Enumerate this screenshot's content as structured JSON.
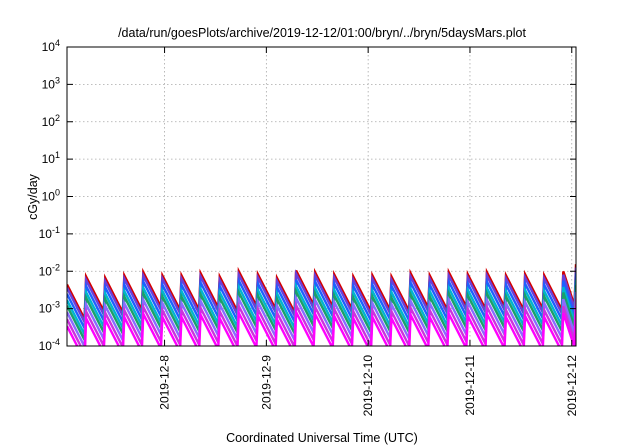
{
  "chart_data": {
    "type": "line",
    "title": "/data/run/goesPlots/archive/2019-12-12/01:00/bryn/../bryn/5daysMars.plot",
    "xlabel": "Coordinated Universal Time (UTC)",
    "ylabel": "cGy/day",
    "x_scale": "time",
    "y_scale": "log",
    "xlim": [
      "2019-12-07T01:00",
      "2019-12-12T01:00"
    ],
    "ylim": [
      0.0001,
      10000
    ],
    "grid": true,
    "legend": "none",
    "x_ticks": [
      "2019-12-8",
      "2019-12-9",
      "2019-12-10",
      "2019-12-11",
      "2019-12-12"
    ],
    "y_ticks": [
      {
        "value": 0.0001,
        "base": "10",
        "exp": "-4"
      },
      {
        "value": 0.001,
        "base": "10",
        "exp": "-3"
      },
      {
        "value": 0.01,
        "base": "10",
        "exp": "-2"
      },
      {
        "value": 0.1,
        "base": "10",
        "exp": "-1"
      },
      {
        "value": 1,
        "base": "10",
        "exp": "0"
      },
      {
        "value": 10,
        "base": "10",
        "exp": "1"
      },
      {
        "value": 100,
        "base": "10",
        "exp": "2"
      },
      {
        "value": 1000,
        "base": "10",
        "exp": "3"
      },
      {
        "value": 10000,
        "base": "10",
        "exp": "4"
      }
    ],
    "sawtooth_peaks": [
      {
        "t": "2019-12-07T01:00",
        "level": 0.004
      },
      {
        "t": "2019-12-07T05:30",
        "level": 0.0065
      },
      {
        "t": "2019-12-07T10:00",
        "level": 0.006
      },
      {
        "t": "2019-12-07T14:30",
        "level": 0.007
      },
      {
        "t": "2019-12-07T19:00",
        "level": 0.0085
      },
      {
        "t": "2019-12-07T23:30",
        "level": 0.007
      },
      {
        "t": "2019-12-08T04:00",
        "level": 0.007
      },
      {
        "t": "2019-12-08T08:30",
        "level": 0.008
      },
      {
        "t": "2019-12-08T13:00",
        "level": 0.0065
      },
      {
        "t": "2019-12-08T17:30",
        "level": 0.009
      },
      {
        "t": "2019-12-08T22:00",
        "level": 0.0075
      },
      {
        "t": "2019-12-09T02:30",
        "level": 0.006
      },
      {
        "t": "2019-12-09T07:00",
        "level": 0.0095
      },
      {
        "t": "2019-12-09T11:30",
        "level": 0.0085
      },
      {
        "t": "2019-12-09T16:00",
        "level": 0.0075
      },
      {
        "t": "2019-12-09T20:30",
        "level": 0.0065
      },
      {
        "t": "2019-12-10T01:00",
        "level": 0.007
      },
      {
        "t": "2019-12-10T05:30",
        "level": 0.0065
      },
      {
        "t": "2019-12-10T10:00",
        "level": 0.008
      },
      {
        "t": "2019-12-10T14:30",
        "level": 0.007
      },
      {
        "t": "2019-12-10T19:00",
        "level": 0.0085
      },
      {
        "t": "2019-12-10T23:30",
        "level": 0.0075
      },
      {
        "t": "2019-12-11T04:00",
        "level": 0.0085
      },
      {
        "t": "2019-12-11T08:30",
        "level": 0.007
      },
      {
        "t": "2019-12-11T13:00",
        "level": 0.0075
      },
      {
        "t": "2019-12-11T17:30",
        "level": 0.007
      },
      {
        "t": "2019-12-11T22:00",
        "level": 0.009
      },
      {
        "t": "2019-12-12T01:00",
        "level": 0.014
      }
    ],
    "series": [
      {
        "color": "#d40000",
        "factor": 1.1
      },
      {
        "color": "#6a3fd8",
        "factor": 0.9
      },
      {
        "color": "#1f5fff",
        "factor": 0.62
      },
      {
        "color": "#00b4d0",
        "factor": 0.42
      },
      {
        "color": "#1aa06a",
        "factor": 0.3
      },
      {
        "color": "#8a6cff",
        "factor": 0.2
      },
      {
        "color": "#cc33dd",
        "factor": 0.13
      },
      {
        "color": "#ff00ff",
        "factor": 0.085
      }
    ],
    "decay_ratio": 0.12
  }
}
